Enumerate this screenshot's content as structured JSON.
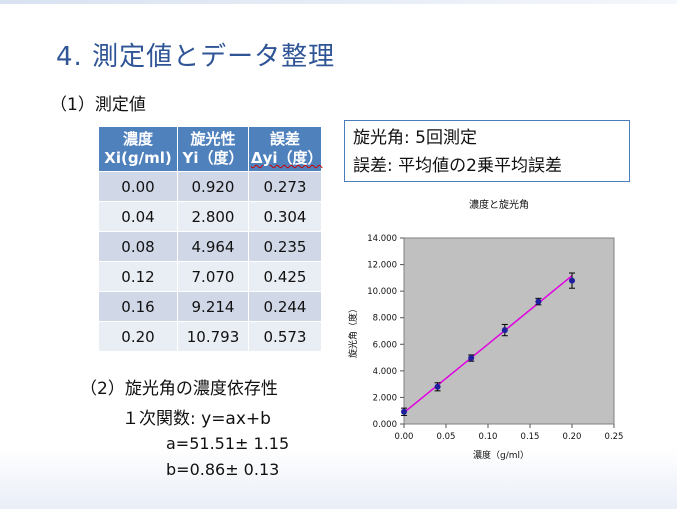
{
  "slide": {
    "title": "4. 測定値とデータ整理",
    "section1": "（1）測定値",
    "table": {
      "headers": [
        {
          "line1": "濃度",
          "line2": "Xi(g/ml)"
        },
        {
          "line1": "旋光性",
          "line2": "Yi（度）"
        },
        {
          "line1": "誤差",
          "line2": "Δyi（度）"
        }
      ],
      "rows": [
        [
          "0.00",
          "0.920",
          "0.273"
        ],
        [
          "0.04",
          "2.800",
          "0.304"
        ],
        [
          "0.08",
          "4.964",
          "0.235"
        ],
        [
          "0.12",
          "7.070",
          "0.425"
        ],
        [
          "0.16",
          "9.214",
          "0.244"
        ],
        [
          "0.20",
          "10.793",
          "0.573"
        ]
      ]
    },
    "info_box": {
      "line1": "旋光角: 5回測定",
      "line2": "誤差: 平均値の2乗平均誤差"
    },
    "section2": "（2）旋光角の濃度依存性",
    "function_label": "１次関数: y=ax+b",
    "param_a": "a=51.51± 1.15",
    "param_b": "b=0.86± 0.13"
  },
  "chart_data": {
    "type": "scatter",
    "title": "濃度と旋光角",
    "xlabel": "濃度（g/ml）",
    "ylabel": "旋光角（度）",
    "xlim": [
      0,
      0.25
    ],
    "ylim": [
      0,
      14
    ],
    "x_ticks": [
      "0.00",
      "0.05",
      "0.10",
      "0.15",
      "0.20",
      "0.25"
    ],
    "y_ticks": [
      "0.000",
      "2.000",
      "4.000",
      "6.000",
      "8.000",
      "10.000",
      "12.000",
      "14.000"
    ],
    "x": [
      0.0,
      0.04,
      0.08,
      0.12,
      0.16,
      0.2
    ],
    "y": [
      0.92,
      2.8,
      4.964,
      7.07,
      9.214,
      10.793
    ],
    "errors": [
      0.273,
      0.304,
      0.235,
      0.425,
      0.244,
      0.573
    ],
    "fit_line": {
      "slope": 51.51,
      "intercept": 0.86,
      "x_range": [
        0.0,
        0.2
      ]
    },
    "grid": false,
    "plot_background": "#c0c0c0",
    "marker_color": "#1f1f9e",
    "fit_color": "#e000e0",
    "errorbar_color": "#000000"
  }
}
